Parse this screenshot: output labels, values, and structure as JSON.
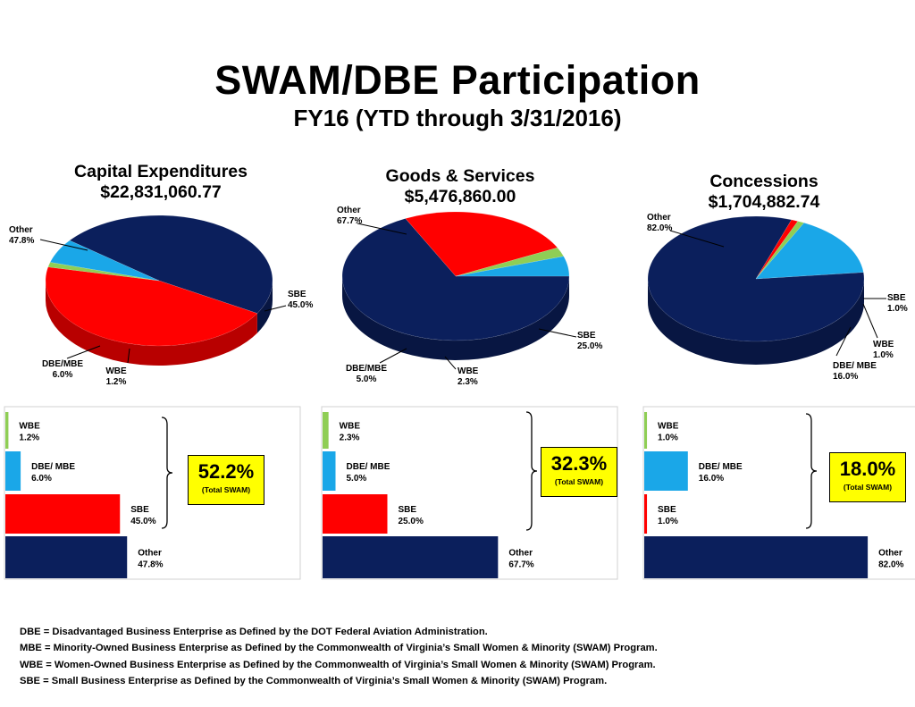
{
  "title": "SWAM/DBE Participation",
  "subtitle": "FY16 (YTD through 3/31/2016)",
  "colors": {
    "Other": "#0b1f5c",
    "SBE": "#ff0000",
    "DBE/MBE": "#1aa7e8",
    "WBE": "#8fce55"
  },
  "chart_data": [
    {
      "type": "pie",
      "title": "Capital Expenditures",
      "total": "$22,831,060.77",
      "slices": [
        {
          "category": "Other",
          "label": "Other",
          "value": 47.8,
          "pct": "47.8%"
        },
        {
          "category": "SBE",
          "label": "SBE",
          "value": 45.0,
          "pct": "45.0%"
        },
        {
          "category": "WBE",
          "label": "WBE",
          "value": 1.2,
          "pct": "1.2%"
        },
        {
          "category": "DBE/MBE",
          "label": "DBE/MBE",
          "value": 6.0,
          "pct": "6.0%"
        }
      ],
      "bars": [
        {
          "category": "WBE",
          "label": "WBE",
          "value": 1.2,
          "pct": "1.2%"
        },
        {
          "category": "DBE/MBE",
          "label": "DBE/ MBE",
          "value": 6.0,
          "pct": "6.0%"
        },
        {
          "category": "SBE",
          "label": "SBE",
          "value": 45.0,
          "pct": "45.0%"
        },
        {
          "category": "Other",
          "label": "Other",
          "value": 47.8,
          "pct": "47.8%"
        }
      ],
      "swam_total": "52.2%",
      "swam_caption": "(Total SWAM)"
    },
    {
      "type": "pie",
      "title": "Goods & Services",
      "total": "$5,476,860.00",
      "slices": [
        {
          "category": "Other",
          "label": "Other",
          "value": 67.7,
          "pct": "67.7%"
        },
        {
          "category": "SBE",
          "label": "SBE",
          "value": 25.0,
          "pct": "25.0%"
        },
        {
          "category": "WBE",
          "label": "WBE",
          "value": 2.3,
          "pct": "2.3%"
        },
        {
          "category": "DBE/MBE",
          "label": "DBE/MBE",
          "value": 5.0,
          "pct": "5.0%"
        }
      ],
      "bars": [
        {
          "category": "WBE",
          "label": "WBE",
          "value": 2.3,
          "pct": "2.3%"
        },
        {
          "category": "DBE/MBE",
          "label": "DBE/ MBE",
          "value": 5.0,
          "pct": "5.0%"
        },
        {
          "category": "SBE",
          "label": "SBE",
          "value": 25.0,
          "pct": "25.0%"
        },
        {
          "category": "Other",
          "label": "Other",
          "value": 67.7,
          "pct": "67.7%"
        }
      ],
      "swam_total": "32.3%",
      "swam_caption": "(Total SWAM)"
    },
    {
      "type": "pie",
      "title": "Concessions",
      "total": "$1,704,882.74",
      "slices": [
        {
          "category": "Other",
          "label": "Other",
          "value": 82.0,
          "pct": "82.0%"
        },
        {
          "category": "SBE",
          "label": "SBE",
          "value": 1.0,
          "pct": "1.0%"
        },
        {
          "category": "WBE",
          "label": "WBE",
          "value": 1.0,
          "pct": "1.0%"
        },
        {
          "category": "DBE/MBE",
          "label": "DBE/ MBE",
          "value": 16.0,
          "pct": "16.0%"
        }
      ],
      "bars": [
        {
          "category": "WBE",
          "label": "WBE",
          "value": 1.0,
          "pct": "1.0%"
        },
        {
          "category": "DBE/MBE",
          "label": "DBE/ MBE",
          "value": 16.0,
          "pct": "16.0%"
        },
        {
          "category": "SBE",
          "label": "SBE",
          "value": 1.0,
          "pct": "1.0%"
        },
        {
          "category": "Other",
          "label": "Other",
          "value": 82.0,
          "pct": "82.0%"
        }
      ],
      "swam_total": "18.0%",
      "swam_caption": "(Total SWAM)"
    }
  ],
  "footnotes": [
    "DBE = Disadvantaged Business Enterprise as Defined by the DOT Federal Aviation Administration.",
    "MBE = Minority-Owned Business Enterprise as Defined by the Commonwealth of Virginia’s Small Women & Minority (SWAM) Program.",
    "WBE = Women-Owned Business Enterprise as Defined by the Commonwealth of Virginia’s Small Women & Minority (SWAM) Program.",
    "SBE = Small Business Enterprise as Defined by the Commonwealth of Virginia’s Small Women & Minority (SWAM) Program."
  ]
}
